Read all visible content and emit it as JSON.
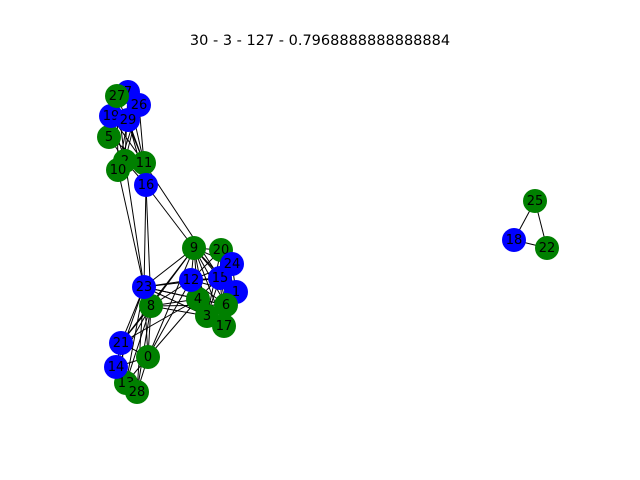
{
  "title": "30 - 3 - 127 - 0.7968888888888884",
  "colors": {
    "green": "#008000",
    "blue": "#0000ff",
    "edge": "#000000"
  },
  "nodes": [
    {
      "id": "0",
      "color": "green"
    },
    {
      "id": "1",
      "color": "blue"
    },
    {
      "id": "2",
      "color": "green"
    },
    {
      "id": "3",
      "color": "green"
    },
    {
      "id": "4",
      "color": "green"
    },
    {
      "id": "5",
      "color": "green"
    },
    {
      "id": "6",
      "color": "green"
    },
    {
      "id": "7",
      "color": "blue"
    },
    {
      "id": "8",
      "color": "green"
    },
    {
      "id": "9",
      "color": "green"
    },
    {
      "id": "10",
      "color": "green"
    },
    {
      "id": "11",
      "color": "green"
    },
    {
      "id": "12",
      "color": "blue"
    },
    {
      "id": "13",
      "color": "green"
    },
    {
      "id": "14",
      "color": "blue"
    },
    {
      "id": "15",
      "color": "blue"
    },
    {
      "id": "16",
      "color": "blue"
    },
    {
      "id": "17",
      "color": "green"
    },
    {
      "id": "18",
      "color": "blue"
    },
    {
      "id": "19",
      "color": "blue"
    },
    {
      "id": "20",
      "color": "green"
    },
    {
      "id": "21",
      "color": "blue"
    },
    {
      "id": "22",
      "color": "green"
    },
    {
      "id": "23",
      "color": "blue"
    },
    {
      "id": "24",
      "color": "blue"
    },
    {
      "id": "25",
      "color": "green"
    },
    {
      "id": "26",
      "color": "blue"
    },
    {
      "id": "27",
      "color": "green"
    },
    {
      "id": "28",
      "color": "green"
    },
    {
      "id": "29",
      "color": "blue"
    }
  ],
  "edges": [
    [
      "25",
      "18"
    ],
    [
      "25",
      "22"
    ],
    [
      "18",
      "22"
    ],
    [
      "27",
      "11"
    ],
    [
      "27",
      "10"
    ],
    [
      "27",
      "2"
    ],
    [
      "7",
      "11"
    ],
    [
      "7",
      "2"
    ],
    [
      "26",
      "11"
    ],
    [
      "26",
      "10"
    ],
    [
      "26",
      "2"
    ],
    [
      "19",
      "11"
    ],
    [
      "19",
      "2"
    ],
    [
      "29",
      "11"
    ],
    [
      "29",
      "10"
    ],
    [
      "29",
      "16"
    ],
    [
      "5",
      "11"
    ],
    [
      "5",
      "2"
    ],
    [
      "2",
      "16"
    ],
    [
      "11",
      "16"
    ],
    [
      "10",
      "23"
    ],
    [
      "2",
      "23"
    ],
    [
      "16",
      "23"
    ],
    [
      "16",
      "8"
    ],
    [
      "16",
      "9"
    ],
    [
      "11",
      "15"
    ],
    [
      "9",
      "20"
    ],
    [
      "9",
      "24"
    ],
    [
      "9",
      "12"
    ],
    [
      "9",
      "15"
    ],
    [
      "9",
      "1"
    ],
    [
      "9",
      "4"
    ],
    [
      "9",
      "6"
    ],
    [
      "9",
      "3"
    ],
    [
      "9",
      "17"
    ],
    [
      "20",
      "24"
    ],
    [
      "20",
      "12"
    ],
    [
      "20",
      "15"
    ],
    [
      "20",
      "1"
    ],
    [
      "20",
      "6"
    ],
    [
      "20",
      "3"
    ],
    [
      "12",
      "15"
    ],
    [
      "12",
      "24"
    ],
    [
      "12",
      "1"
    ],
    [
      "12",
      "4"
    ],
    [
      "12",
      "6"
    ],
    [
      "12",
      "3"
    ],
    [
      "12",
      "17"
    ],
    [
      "15",
      "24"
    ],
    [
      "15",
      "1"
    ],
    [
      "15",
      "6"
    ],
    [
      "15",
      "3"
    ],
    [
      "15",
      "17"
    ],
    [
      "24",
      "1"
    ],
    [
      "24",
      "4"
    ],
    [
      "4",
      "6"
    ],
    [
      "4",
      "3"
    ],
    [
      "4",
      "17"
    ],
    [
      "6",
      "3"
    ],
    [
      "6",
      "17"
    ],
    [
      "3",
      "17"
    ],
    [
      "23",
      "8"
    ],
    [
      "23",
      "12"
    ],
    [
      "23",
      "15"
    ],
    [
      "23",
      "4"
    ],
    [
      "23",
      "6"
    ],
    [
      "23",
      "3"
    ],
    [
      "8",
      "12"
    ],
    [
      "8",
      "4"
    ],
    [
      "8",
      "6"
    ],
    [
      "8",
      "3"
    ],
    [
      "23",
      "21"
    ],
    [
      "23",
      "14"
    ],
    [
      "23",
      "0"
    ],
    [
      "23",
      "13"
    ],
    [
      "23",
      "28"
    ],
    [
      "8",
      "21"
    ],
    [
      "8",
      "14"
    ],
    [
      "8",
      "0"
    ],
    [
      "8",
      "13"
    ],
    [
      "8",
      "28"
    ],
    [
      "21",
      "14"
    ],
    [
      "21",
      "0"
    ],
    [
      "21",
      "13"
    ],
    [
      "14",
      "0"
    ],
    [
      "14",
      "13"
    ],
    [
      "0",
      "13"
    ],
    [
      "0",
      "28"
    ],
    [
      "13",
      "28"
    ],
    [
      "9",
      "23"
    ],
    [
      "9",
      "8"
    ],
    [
      "9",
      "0"
    ],
    [
      "12",
      "0"
    ],
    [
      "4",
      "0"
    ],
    [
      "4",
      "21"
    ],
    [
      "9",
      "21"
    ]
  ]
}
